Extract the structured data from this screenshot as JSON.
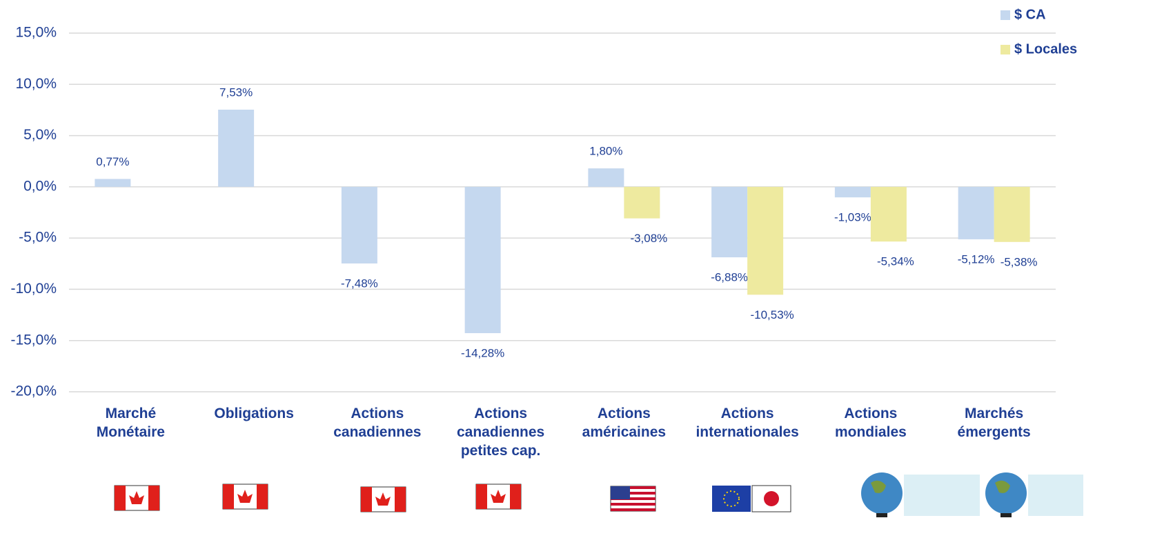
{
  "chart_data": {
    "type": "bar",
    "categories": [
      "Marché Monétaire",
      "Obligations",
      "Actions canadiennes",
      "Actions canadiennes petites cap.",
      "Actions américaines",
      "Actions internationales",
      "Actions mondiales",
      "Marchés émergents"
    ],
    "series": [
      {
        "name": "$ CA",
        "color": "#c5d8ef",
        "values": [
          0.77,
          7.53,
          -7.48,
          -14.28,
          1.8,
          -6.88,
          -1.03,
          -5.12
        ],
        "value_labels": [
          "0,77%",
          "7,53%",
          "-7,48%",
          "-14,28%",
          "1,80%",
          "-6,88%",
          "-1,03%",
          "-5,12%"
        ]
      },
      {
        "name": "$ Locales",
        "color": "#eeea9f",
        "values": [
          null,
          null,
          null,
          null,
          -3.08,
          -10.53,
          -5.34,
          -5.38
        ],
        "value_labels": [
          null,
          null,
          null,
          null,
          "-3,08%",
          "-10,53%",
          "-5,34%",
          "-5,38%"
        ]
      }
    ],
    "ylim": [
      -20,
      15
    ],
    "yticks": [
      {
        "value": -20,
        "label": "-20,0%"
      },
      {
        "value": -15,
        "label": "-15,0%"
      },
      {
        "value": -10,
        "label": "-10,0%"
      },
      {
        "value": -5,
        "label": "-5,0%"
      },
      {
        "value": 0,
        "label": "0,0%"
      },
      {
        "value": 5,
        "label": "5,0%"
      },
      {
        "value": 10,
        "label": "10,0%"
      },
      {
        "value": 15,
        "label": "15,0%"
      }
    ],
    "grid": true,
    "legend": "top-right"
  }
}
